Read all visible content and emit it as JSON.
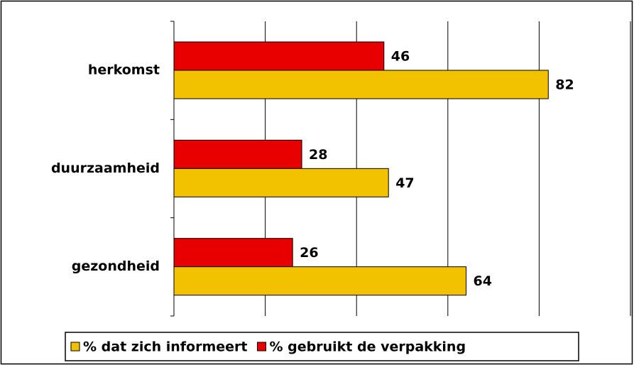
{
  "chart_data": {
    "type": "hbar",
    "categories": [
      "herkomst",
      "duurzaamheid",
      "gezondheid"
    ],
    "series": [
      {
        "name": "% dat zich informeert",
        "color": "#f2c200",
        "values": [
          82,
          47,
          64
        ]
      },
      {
        "name": "% gebruikt de verpakking",
        "color": "#e80000",
        "values": [
          46,
          28,
          26
        ]
      }
    ],
    "xlim": [
      0,
      100
    ],
    "xticks": [
      0,
      20,
      40,
      60,
      80,
      100
    ],
    "grid": true,
    "legend": "bottom"
  }
}
